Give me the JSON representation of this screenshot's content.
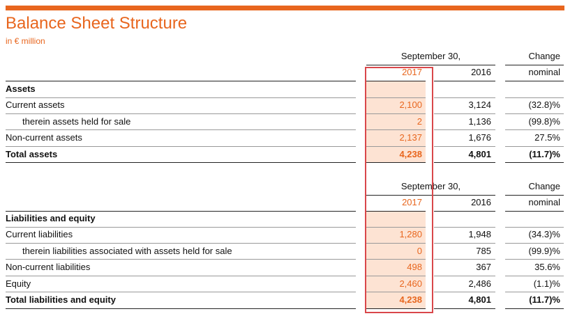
{
  "header": {
    "title": "Balance Sheet Structure",
    "subtitle": "in € million"
  },
  "tables": [
    {
      "head": {
        "group": "September 30,",
        "change": "Change",
        "year1": "2017",
        "year2": "2016",
        "kind": "nominal"
      },
      "section": "Assets",
      "rows": [
        [
          "Current assets",
          "2,100",
          "3,124",
          "(32.8)%"
        ],
        [
          "therein assets held for sale",
          "2",
          "1,136",
          "(99.8)%"
        ],
        [
          "Non-current assets",
          "2,137",
          "1,676",
          "27.5%"
        ],
        [
          "Total assets",
          "4,238",
          "4,801",
          "(11.7)%"
        ]
      ]
    },
    {
      "head": {
        "group": "September 30,",
        "change": "Change",
        "year1": "2017",
        "year2": "2016",
        "kind": "nominal"
      },
      "section": "Liabilities and equity",
      "rows": [
        [
          "Current liabilities",
          "1,280",
          "1,948",
          "(34.3)%"
        ],
        [
          "therein liabilities associated with assets held for sale",
          "0",
          "785",
          "(99.9)%"
        ],
        [
          "Non-current liabilities",
          "498",
          "367",
          "35.6%"
        ],
        [
          "Equity",
          "2,460",
          "2,486",
          "(1.1)%"
        ],
        [
          "Total liabilities and equity",
          "4,238",
          "4,801",
          "(11.7)%"
        ]
      ]
    }
  ]
}
